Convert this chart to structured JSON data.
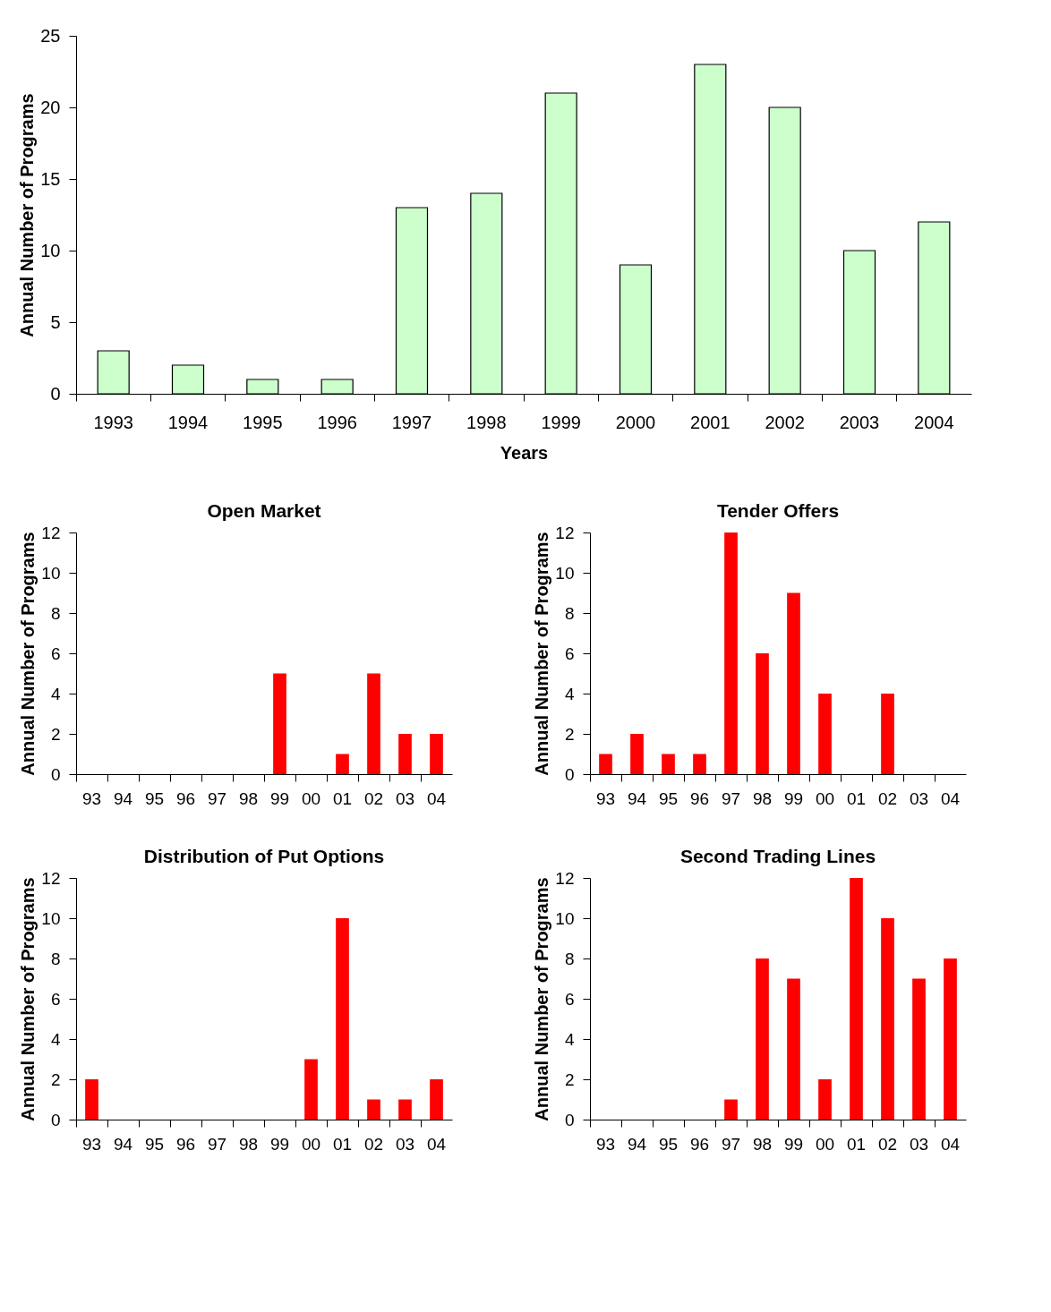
{
  "chart_data": [
    {
      "type": "bar",
      "xlabel": "Years",
      "ylabel": "Annual Number of Programs",
      "categories": [
        "1993",
        "1994",
        "1995",
        "1996",
        "1997",
        "1998",
        "1999",
        "2000",
        "2001",
        "2002",
        "2003",
        "2004"
      ],
      "color": "#ccffcc",
      "values": [
        3,
        2,
        1,
        1,
        13,
        14,
        21,
        9,
        23,
        20,
        10,
        12
      ],
      "ylim": [
        0,
        25
      ],
      "yticks": [
        0,
        5,
        10,
        15,
        20,
        25
      ],
      "grid": false
    },
    {
      "type": "bar",
      "title": "Open Market",
      "ylabel": "Annual Number of Programs",
      "categories": [
        "93",
        "94",
        "95",
        "96",
        "97",
        "98",
        "99",
        "00",
        "01",
        "02",
        "03",
        "04"
      ],
      "color": "#ff0000",
      "values": [
        0,
        0,
        0,
        0,
        0,
        0,
        5,
        0,
        1,
        5,
        2,
        2
      ],
      "ylim": [
        0,
        12
      ],
      "yticks": [
        0,
        2,
        4,
        6,
        8,
        10,
        12
      ],
      "grid": false
    },
    {
      "type": "bar",
      "title": "Tender Offers",
      "ylabel": "Annual Number of Programs",
      "categories": [
        "93",
        "94",
        "95",
        "96",
        "97",
        "98",
        "99",
        "00",
        "01",
        "02",
        "03",
        "04"
      ],
      "color": "#ff0000",
      "values": [
        1,
        2,
        1,
        1,
        12,
        6,
        9,
        4,
        0,
        4,
        0,
        0
      ],
      "ylim": [
        0,
        12
      ],
      "yticks": [
        0,
        2,
        4,
        6,
        8,
        10,
        12
      ],
      "grid": false
    },
    {
      "type": "bar",
      "title": "Distribution of Put Options",
      "ylabel": "Annual Number of Programs",
      "categories": [
        "93",
        "94",
        "95",
        "96",
        "97",
        "98",
        "99",
        "00",
        "01",
        "02",
        "03",
        "04"
      ],
      "color": "#ff0000",
      "values": [
        2,
        0,
        0,
        0,
        0,
        0,
        0,
        3,
        10,
        1,
        1,
        2
      ],
      "ylim": [
        0,
        12
      ],
      "yticks": [
        0,
        2,
        4,
        6,
        8,
        10,
        12
      ],
      "grid": false
    },
    {
      "type": "bar",
      "title": "Second Trading Lines",
      "ylabel": "Annual Number of Programs",
      "categories": [
        "93",
        "94",
        "95",
        "96",
        "97",
        "98",
        "99",
        "00",
        "01",
        "02",
        "03",
        "04"
      ],
      "color": "#ff0000",
      "values": [
        0,
        0,
        0,
        0,
        1,
        8,
        7,
        2,
        12,
        10,
        7,
        8
      ],
      "ylim": [
        0,
        12
      ],
      "yticks": [
        0,
        2,
        4,
        6,
        8,
        10,
        12
      ],
      "grid": false
    }
  ]
}
